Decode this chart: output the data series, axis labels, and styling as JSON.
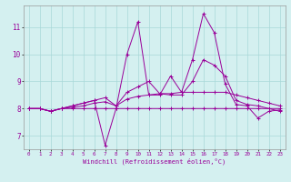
{
  "x": [
    0,
    1,
    2,
    3,
    4,
    5,
    6,
    7,
    8,
    9,
    10,
    11,
    12,
    13,
    14,
    15,
    16,
    17,
    18,
    19,
    20,
    21,
    22,
    23
  ],
  "line1": [
    8.0,
    8.0,
    7.9,
    8.0,
    8.0,
    8.0,
    8.0,
    8.0,
    8.0,
    8.0,
    8.0,
    8.0,
    8.0,
    8.0,
    8.0,
    8.0,
    8.0,
    8.0,
    8.0,
    8.0,
    8.0,
    8.0,
    8.0,
    8.0
  ],
  "line2": [
    8.0,
    8.0,
    7.9,
    8.0,
    8.05,
    8.1,
    8.2,
    8.25,
    8.1,
    8.35,
    8.45,
    8.5,
    8.55,
    8.55,
    8.6,
    8.6,
    8.6,
    8.6,
    8.6,
    8.5,
    8.4,
    8.3,
    8.2,
    8.1
  ],
  "line3": [
    8.0,
    8.0,
    7.9,
    8.0,
    8.1,
    8.2,
    8.3,
    8.4,
    8.1,
    8.6,
    8.8,
    9.0,
    8.55,
    8.5,
    8.5,
    9.0,
    9.8,
    9.6,
    9.2,
    8.3,
    8.15,
    8.1,
    8.0,
    7.9
  ],
  "line4": [
    8.0,
    8.0,
    7.9,
    8.0,
    8.1,
    8.2,
    8.3,
    6.65,
    8.0,
    10.0,
    11.2,
    8.5,
    8.5,
    9.2,
    8.6,
    9.8,
    11.5,
    10.8,
    8.9,
    8.15,
    8.1,
    7.65,
    7.9,
    7.95
  ],
  "color": "#990099",
  "bg_color": "#d4f0f0",
  "grid_color": "#a8d8d8",
  "xlabel": "Windchill (Refroidissement éolien,°C)",
  "ylim": [
    6.5,
    11.8
  ],
  "xlim": [
    -0.5,
    23.5
  ],
  "yticks": [
    7,
    8,
    9,
    10,
    11
  ],
  "xticks": [
    0,
    1,
    2,
    3,
    4,
    5,
    6,
    7,
    8,
    9,
    10,
    11,
    12,
    13,
    14,
    15,
    16,
    17,
    18,
    19,
    20,
    21,
    22,
    23
  ]
}
